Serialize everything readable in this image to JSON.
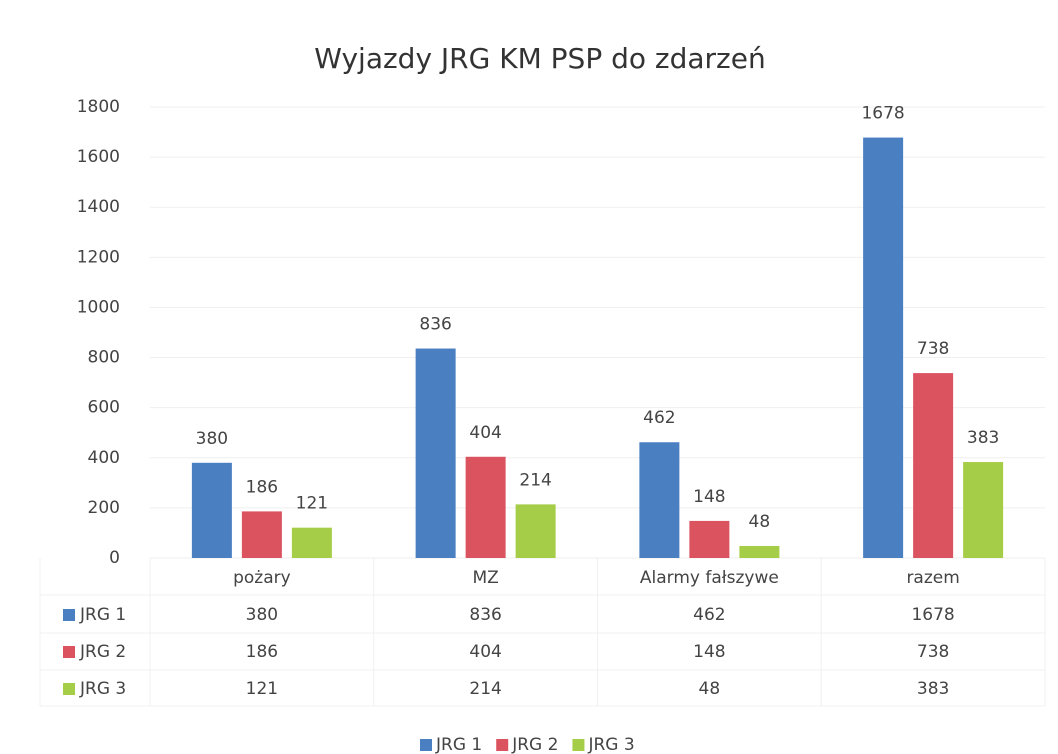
{
  "chart_data": {
    "type": "bar",
    "title": "Wyjazdy JRG KM PSP do zdarzeń",
    "categories": [
      "pożary",
      "MZ",
      "Alarmy fałszywe",
      "razem"
    ],
    "series": [
      {
        "name": "JRG 1",
        "color": "#4a7fc1",
        "values": [
          380,
          836,
          462,
          1678
        ]
      },
      {
        "name": "JRG 2",
        "color": "#dc5360",
        "values": [
          186,
          404,
          148,
          738
        ]
      },
      {
        "name": "JRG 3",
        "color": "#a6cd47",
        "values": [
          121,
          214,
          48,
          383
        ]
      }
    ],
    "ylim": [
      0,
      1800
    ],
    "yticks": [
      0,
      200,
      400,
      600,
      800,
      1000,
      1200,
      1400,
      1600,
      1800
    ],
    "grid": true,
    "legend": "bottom"
  }
}
